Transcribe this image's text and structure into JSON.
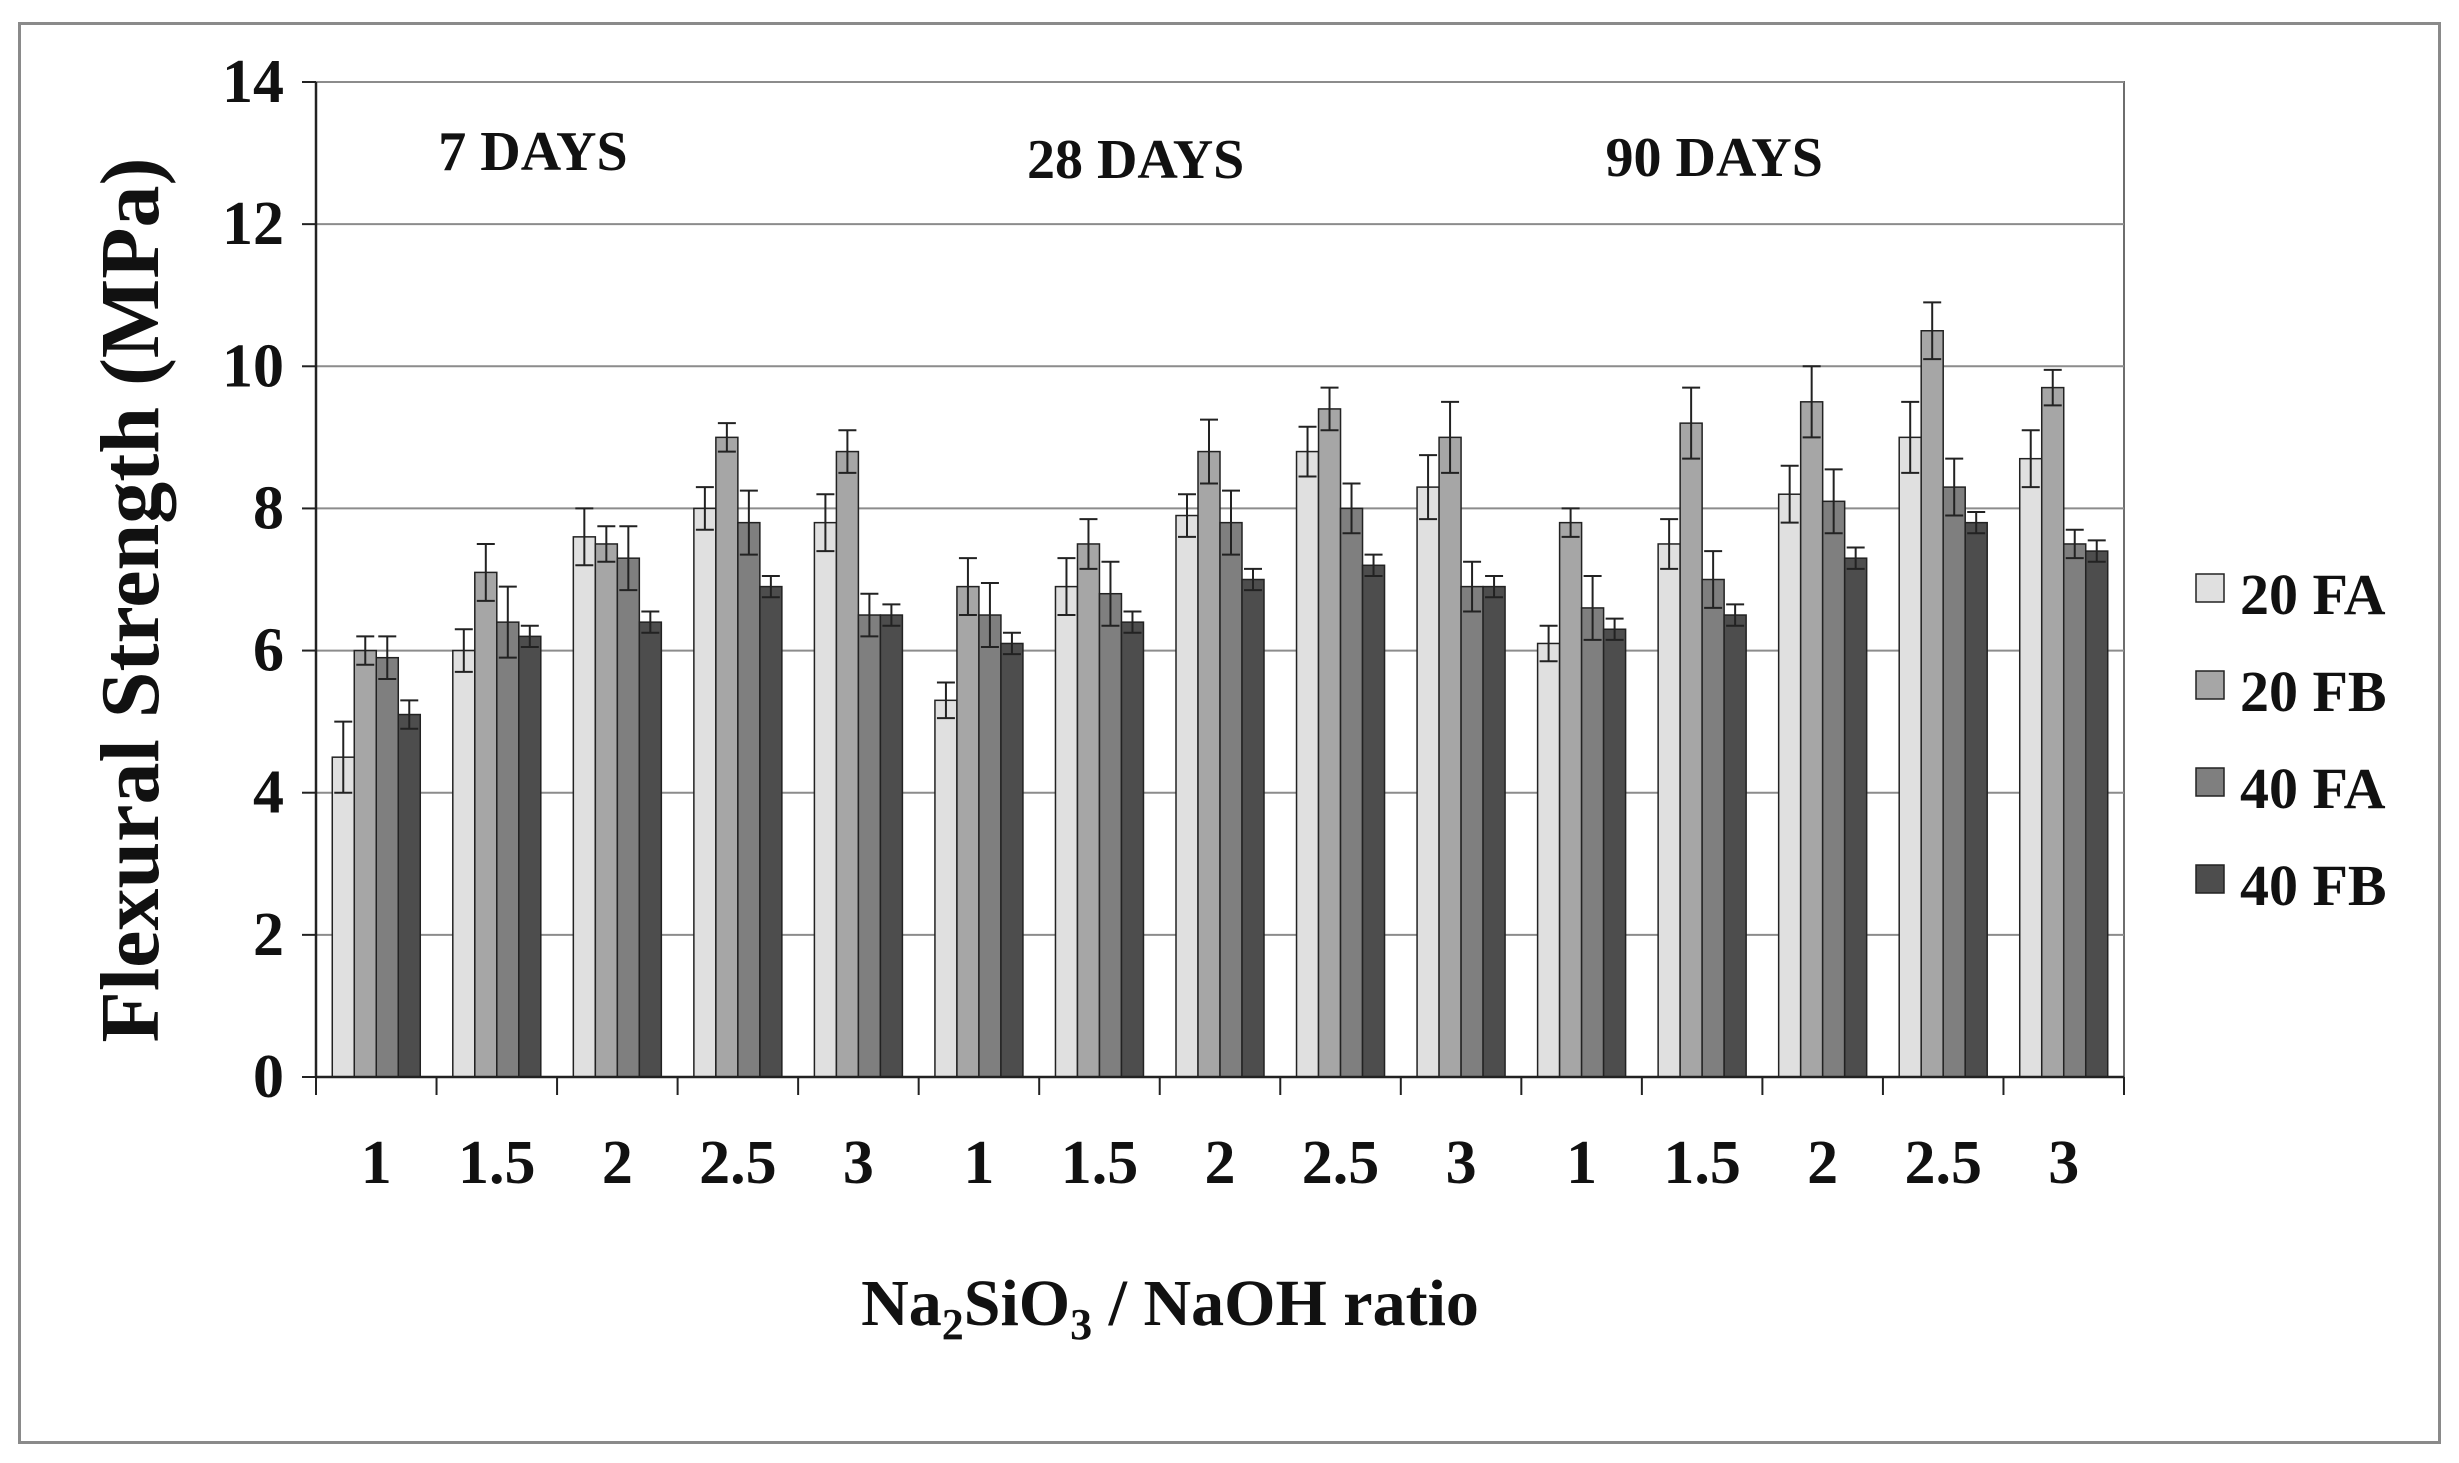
{
  "chart_data": {
    "type": "bar",
    "title": "",
    "ylabel": "Flexural Strength (MPa)",
    "xlabel_parts": [
      "Na",
      "2",
      "SiO",
      "3",
      " / NaOH ratio"
    ],
    "ylim": [
      0,
      14
    ],
    "yticks": [
      0,
      2,
      4,
      6,
      8,
      10,
      12,
      14
    ],
    "grid": true,
    "legend_position": "right",
    "categories": [
      "1",
      "1.5",
      "2",
      "2.5",
      "3",
      "1",
      "1.5",
      "2",
      "2.5",
      "3",
      "1",
      "1.5",
      "2",
      "2.5",
      "3"
    ],
    "group_labels": [
      {
        "label": "7 DAYS",
        "category_index": 1.3
      },
      {
        "label": "28 DAYS",
        "category_index": 6.3
      },
      {
        "label": "90 DAYS",
        "category_index": 11.1
      }
    ],
    "series": [
      {
        "name": "20 FA",
        "color": "#e0e0e0",
        "values": [
          4.5,
          6.0,
          7.6,
          8.0,
          7.8,
          5.3,
          6.9,
          7.9,
          8.8,
          8.3,
          6.1,
          7.5,
          8.2,
          9.0,
          8.7
        ],
        "errors": [
          0.5,
          0.3,
          0.4,
          0.3,
          0.4,
          0.25,
          0.4,
          0.3,
          0.35,
          0.45,
          0.25,
          0.35,
          0.4,
          0.5,
          0.4
        ]
      },
      {
        "name": "20 FB",
        "color": "#a6a6a6",
        "values": [
          6.0,
          7.1,
          7.5,
          9.0,
          8.8,
          6.9,
          7.5,
          8.8,
          9.4,
          9.0,
          7.8,
          9.2,
          9.5,
          10.5,
          9.7
        ],
        "errors": [
          0.2,
          0.4,
          0.25,
          0.2,
          0.3,
          0.4,
          0.35,
          0.45,
          0.3,
          0.5,
          0.2,
          0.5,
          0.5,
          0.4,
          0.25
        ]
      },
      {
        "name": "40 FA",
        "color": "#7f7f7f",
        "values": [
          5.9,
          6.4,
          7.3,
          7.8,
          6.5,
          6.5,
          6.8,
          7.8,
          8.0,
          6.9,
          6.6,
          7.0,
          8.1,
          8.3,
          7.5
        ],
        "errors": [
          0.3,
          0.5,
          0.45,
          0.45,
          0.3,
          0.45,
          0.45,
          0.45,
          0.35,
          0.35,
          0.45,
          0.4,
          0.45,
          0.4,
          0.2
        ]
      },
      {
        "name": "40 FB",
        "color": "#4d4d4d",
        "values": [
          5.1,
          6.2,
          6.4,
          6.9,
          6.5,
          6.1,
          6.4,
          7.0,
          7.2,
          6.9,
          6.3,
          6.5,
          7.3,
          7.8,
          7.4
        ],
        "errors": [
          0.2,
          0.15,
          0.15,
          0.15,
          0.15,
          0.15,
          0.15,
          0.15,
          0.15,
          0.15,
          0.15,
          0.15,
          0.15,
          0.15,
          0.15
        ]
      }
    ]
  }
}
